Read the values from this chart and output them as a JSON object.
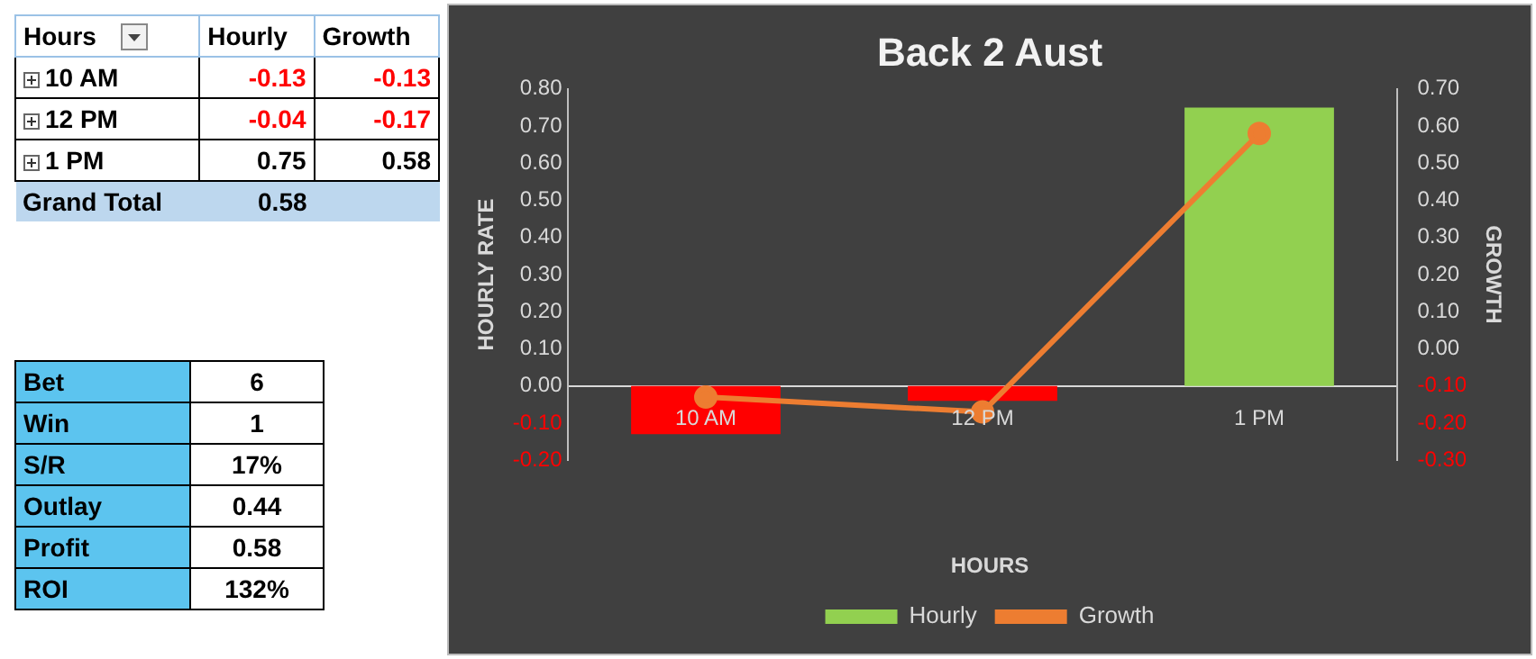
{
  "chart_data": [
    {
      "type": "other",
      "xlabel": "Hours",
      "categories": [
        "10 AM",
        "12 PM",
        "1 PM",
        "Grand Total"
      ],
      "series": [
        {
          "name": "Hourly",
          "values": [
            -0.13,
            -0.04,
            0.75,
            0.58
          ]
        },
        {
          "name": "Growth",
          "values": [
            -0.13,
            -0.17,
            0.58,
            null
          ]
        }
      ],
      "data_labels": true
    },
    {
      "type": "other",
      "categories": [
        "Bet",
        "Win",
        "S/R",
        "Outlay",
        "Profit",
        "ROI"
      ],
      "annotations": [
        "6",
        "1",
        "17%",
        "0.44",
        "0.58",
        "132%"
      ]
    },
    {
      "type": "bar",
      "title": "Back 2 Aust",
      "xlabel": "HOURS",
      "ylabel": "HOURLY RATE",
      "y2label": "GROWTH",
      "categories": [
        "10 AM",
        "12 PM",
        "1 PM"
      ],
      "series": [
        {
          "name": "Hourly",
          "type": "bar",
          "colors": [
            "#ff0000",
            "#ff0000",
            "#92d050"
          ],
          "values": [
            -0.13,
            -0.04,
            0.75
          ]
        },
        {
          "name": "Growth",
          "type": "line",
          "axis": "y2",
          "color": "#ed7d31",
          "values": [
            -0.13,
            -0.17,
            0.58
          ]
        }
      ],
      "ylim": [
        -0.2,
        0.8
      ],
      "yticks": [
        {
          "value": -0.2,
          "label": "-0.20"
        },
        {
          "value": -0.1,
          "label": "-0.10"
        },
        {
          "value": 0,
          "label": "0.00"
        },
        {
          "value": 0.1,
          "label": "0.10"
        },
        {
          "value": 0.2,
          "label": "0.20"
        },
        {
          "value": 0.3,
          "label": "0.30"
        },
        {
          "value": 0.4,
          "label": "0.40"
        },
        {
          "value": 0.5,
          "label": "0.50"
        },
        {
          "value": 0.6,
          "label": "0.60"
        },
        {
          "value": 0.7,
          "label": "0.70"
        },
        {
          "value": 0.8,
          "label": "0.80"
        }
      ],
      "y2lim": [
        -0.3,
        0.7
      ],
      "y2ticks": [
        {
          "value": -0.3,
          "label": "-0.30"
        },
        {
          "value": -0.2,
          "label": "-0.20"
        },
        {
          "value": -0.1,
          "label": "-0.10"
        },
        {
          "value": 0,
          "label": "0.00"
        },
        {
          "value": 0.1,
          "label": "0.10"
        },
        {
          "value": 0.2,
          "label": "0.20"
        },
        {
          "value": 0.3,
          "label": "0.30"
        },
        {
          "value": 0.4,
          "label": "0.40"
        },
        {
          "value": 0.5,
          "label": "0.50"
        },
        {
          "value": 0.6,
          "label": "0.60"
        },
        {
          "value": 0.7,
          "label": "0.70"
        }
      ],
      "grid": false,
      "legend": "bottom",
      "marker": "circle",
      "line_style": "solid"
    }
  ]
}
